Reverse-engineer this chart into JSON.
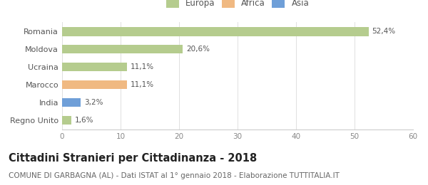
{
  "categories": [
    "Romania",
    "Moldova",
    "Ucraina",
    "Marocco",
    "India",
    "Regno Unito"
  ],
  "values": [
    52.4,
    20.6,
    11.1,
    11.1,
    3.2,
    1.6
  ],
  "labels": [
    "52,4%",
    "20,6%",
    "11,1%",
    "11,1%",
    "3,2%",
    "1,6%"
  ],
  "colors": [
    "#b5cc8e",
    "#b5cc8e",
    "#b5cc8e",
    "#f0b982",
    "#6f9fd8",
    "#b5cc8e"
  ],
  "legend_labels": [
    "Europa",
    "Africa",
    "Asia"
  ],
  "legend_colors": [
    "#b5cc8e",
    "#f0b982",
    "#6f9fd8"
  ],
  "xlim": [
    0,
    60
  ],
  "xticks": [
    0,
    10,
    20,
    30,
    40,
    50,
    60
  ],
  "title": "Cittadini Stranieri per Cittadinanza - 2018",
  "subtitle": "COMUNE DI GARBAGNA (AL) - Dati ISTAT al 1° gennaio 2018 - Elaborazione TUTTITALIA.IT",
  "title_fontsize": 10.5,
  "subtitle_fontsize": 7.5,
  "background_color": "#ffffff",
  "bar_height": 0.5
}
